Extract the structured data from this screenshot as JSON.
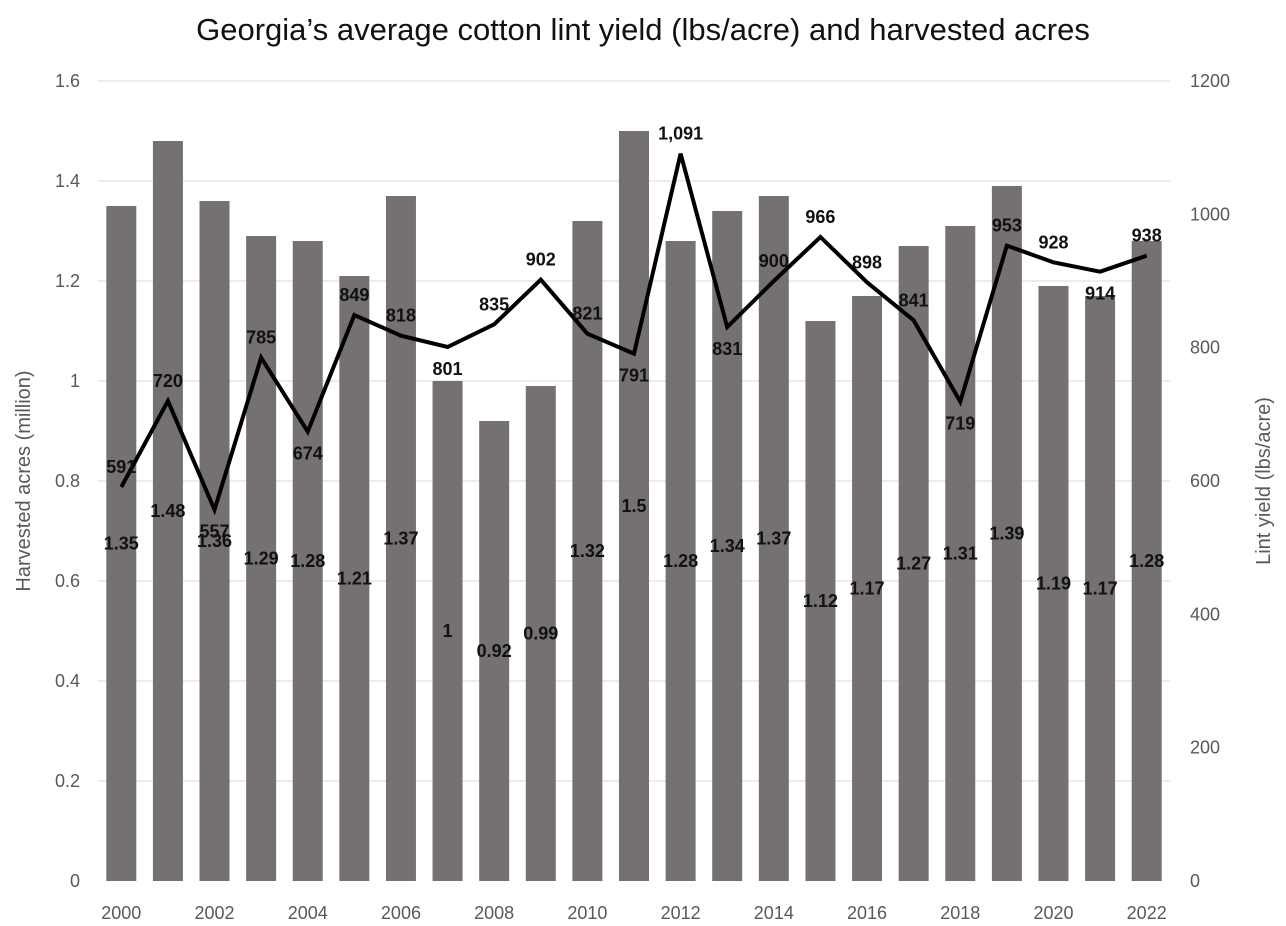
{
  "chart_data": {
    "type": "bar",
    "title": "Georgia’s average cotton lint yield (lbs/acre) and harvested acres",
    "categories": [
      "2000",
      "2001",
      "2002",
      "2003",
      "2004",
      "2005",
      "2006",
      "2007",
      "2008",
      "2009",
      "2010",
      "2011",
      "2012",
      "2013",
      "2014",
      "2015",
      "2016",
      "2017",
      "2018",
      "2019",
      "2020",
      "2021",
      "2022"
    ],
    "x_tick_labels": [
      "2000",
      "2002",
      "2004",
      "2006",
      "2008",
      "2010",
      "2012",
      "2014",
      "2016",
      "2018",
      "2020",
      "2022"
    ],
    "series": [
      {
        "axis": "left",
        "type": "bar",
        "color": "#767171",
        "values": [
          1.35,
          1.48,
          1.36,
          1.29,
          1.28,
          1.21,
          1.37,
          1.0,
          0.92,
          0.99,
          1.32,
          1.5,
          1.28,
          1.34,
          1.37,
          1.12,
          1.17,
          1.27,
          1.31,
          1.39,
          1.19,
          1.17,
          1.28
        ],
        "labels": [
          "1.35",
          "1.48",
          "1.36",
          "1.29",
          "1.28",
          "1.21",
          "1.37",
          "1",
          "0.92",
          "0.99",
          "1.32",
          "1.5",
          "1.28",
          "1.34",
          "1.37",
          "1.12",
          "1.17",
          "1.27",
          "1.31",
          "1.39",
          "1.19",
          "1.17",
          "1.28"
        ]
      },
      {
        "axis": "right",
        "type": "line",
        "color": "#000000",
        "values": [
          591,
          720,
          557,
          785,
          674,
          849,
          818,
          801,
          835,
          902,
          821,
          791,
          1091,
          831,
          900,
          966,
          898,
          841,
          719,
          953,
          928,
          914,
          938
        ],
        "labels": [
          "591",
          "720",
          "557",
          "785",
          "674",
          "849",
          "818",
          "801",
          "835",
          "902",
          "821",
          "791",
          "1,091",
          "831",
          "900",
          "966",
          "898",
          "841",
          "719",
          "953",
          "928",
          "914",
          "938"
        ]
      }
    ],
    "ylabel": "Harvested acres (million)",
    "ylim": [
      0,
      1.6
    ],
    "yticks": [
      "0",
      "0.2",
      "0.4",
      "0.6",
      "0.8",
      "1",
      "1.2",
      "1.4",
      "1.6"
    ],
    "y2label": "Lint yield (lbs/acre)",
    "y2lim": [
      0,
      1200
    ],
    "y2ticks": [
      "0",
      "200",
      "400",
      "600",
      "800",
      "1000",
      "1200"
    ],
    "grid": true,
    "colors": {
      "bar": "#767171",
      "line": "#000000",
      "grid": "#e6e6e6",
      "axis_text": "#595959",
      "label_text": "#111111"
    }
  }
}
